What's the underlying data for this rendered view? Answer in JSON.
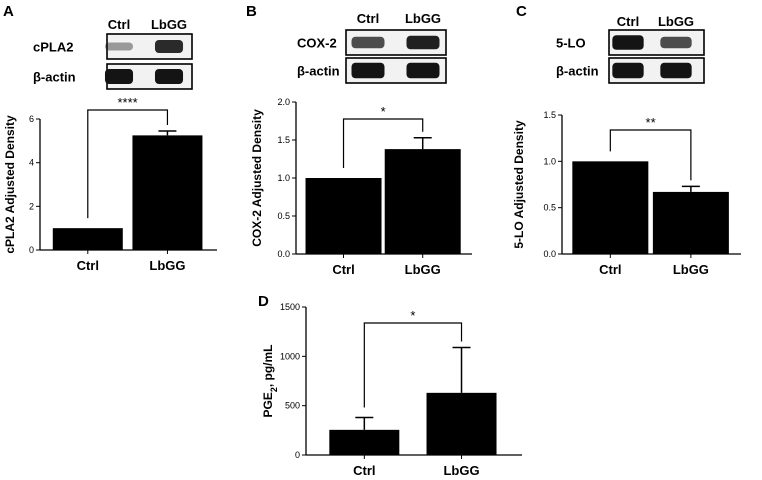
{
  "colors": {
    "bar": "#000000",
    "axis": "#000000",
    "blot_band": "#141414",
    "blot_background": "#f2f2f2"
  },
  "chart_data": [
    {
      "type": "bar",
      "panel": "A",
      "categories": [
        "Ctrl",
        "LbGG"
      ],
      "values": [
        1.0,
        5.25
      ],
      "error_bars": [
        0,
        0.2
      ],
      "ylabel": "cPLA2 Adjusted Density",
      "ylim": [
        0,
        6
      ],
      "yticks": [
        0,
        2,
        4,
        6
      ],
      "significance": "****",
      "blot": {
        "columns": [
          "Ctrl",
          "LbGG"
        ],
        "rows": [
          "cPLA2",
          "β-actin"
        ],
        "band_intensity": [
          [
            0.25,
            0.75
          ],
          [
            0.95,
            0.95
          ]
        ]
      }
    },
    {
      "type": "bar",
      "panel": "B",
      "categories": [
        "Ctrl",
        "LbGG"
      ],
      "values": [
        1.0,
        1.38
      ],
      "error_bars": [
        0,
        0.15
      ],
      "ylabel": "COX-2 Adjusted Density",
      "ylim": [
        0,
        2
      ],
      "yticks": [
        0.0,
        0.5,
        1.0,
        1.5,
        2.0
      ],
      "significance": "*",
      "blot": {
        "columns": [
          "Ctrl",
          "LbGG"
        ],
        "rows": [
          "COX-2",
          "β-actin"
        ],
        "band_intensity": [
          [
            0.6,
            0.8
          ],
          [
            1.0,
            1.0
          ]
        ]
      }
    },
    {
      "type": "bar",
      "panel": "C",
      "categories": [
        "Ctrl",
        "LbGG"
      ],
      "values": [
        1.0,
        0.67
      ],
      "error_bars": [
        0,
        0.06
      ],
      "ylabel": "5-LO Adjusted Density",
      "ylim": [
        0,
        1.5
      ],
      "yticks": [
        0.0,
        0.5,
        1.0,
        1.5
      ],
      "significance": "**",
      "blot": {
        "columns": [
          "Ctrl",
          "LbGG"
        ],
        "rows": [
          "5-LO",
          "β-actin"
        ],
        "band_intensity": [
          [
            0.9,
            0.6
          ],
          [
            1.0,
            1.0
          ]
        ]
      }
    },
    {
      "type": "bar",
      "panel": "D",
      "categories": [
        "Ctrl",
        "LbGG"
      ],
      "values": [
        255,
        630
      ],
      "error_bars": [
        125,
        460
      ],
      "ylabel": "PGE2, pg/mL",
      "ylabel_main": "PGE",
      "ylabel_sub": "2",
      "ylabel_rest": ", pg/mL",
      "ylim": [
        0,
        1500
      ],
      "yticks": [
        0,
        500,
        1000,
        1500
      ],
      "significance": "*"
    }
  ]
}
